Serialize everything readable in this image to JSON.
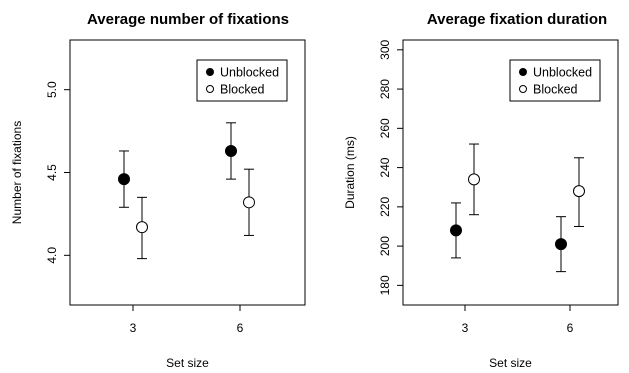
{
  "chart_data": [
    {
      "type": "scatter",
      "title": "Average number of fixations",
      "xlabel": "Set size",
      "ylabel": "Number of fixations",
      "categories": [
        "3",
        "6"
      ],
      "ylim": [
        3.7,
        5.3
      ],
      "yticks": [
        "4.0",
        "4.5",
        "5.0"
      ],
      "legend_position": "top-right",
      "series": [
        {
          "name": "Unblocked",
          "marker": "filled-circle",
          "values": [
            4.46,
            4.63
          ],
          "lower": [
            4.29,
            4.46
          ],
          "upper": [
            4.63,
            4.8
          ]
        },
        {
          "name": "Blocked",
          "marker": "open-circle",
          "values": [
            4.17,
            4.32
          ],
          "lower": [
            3.98,
            4.12
          ],
          "upper": [
            4.35,
            4.52
          ]
        }
      ]
    },
    {
      "type": "scatter",
      "title": "Average fixation duration",
      "xlabel": "Set size",
      "ylabel": "Duration (ms)",
      "categories": [
        "3",
        "6"
      ],
      "ylim": [
        170,
        305
      ],
      "yticks": [
        "180",
        "200",
        "220",
        "240",
        "260",
        "280",
        "300"
      ],
      "legend_position": "top-right",
      "series": [
        {
          "name": "Unblocked",
          "marker": "filled-circle",
          "values": [
            208,
            201
          ],
          "lower": [
            194,
            187
          ],
          "upper": [
            222,
            215
          ]
        },
        {
          "name": "Blocked",
          "marker": "open-circle",
          "values": [
            234,
            228
          ],
          "lower": [
            216,
            210
          ],
          "upper": [
            252,
            245
          ]
        }
      ]
    }
  ]
}
